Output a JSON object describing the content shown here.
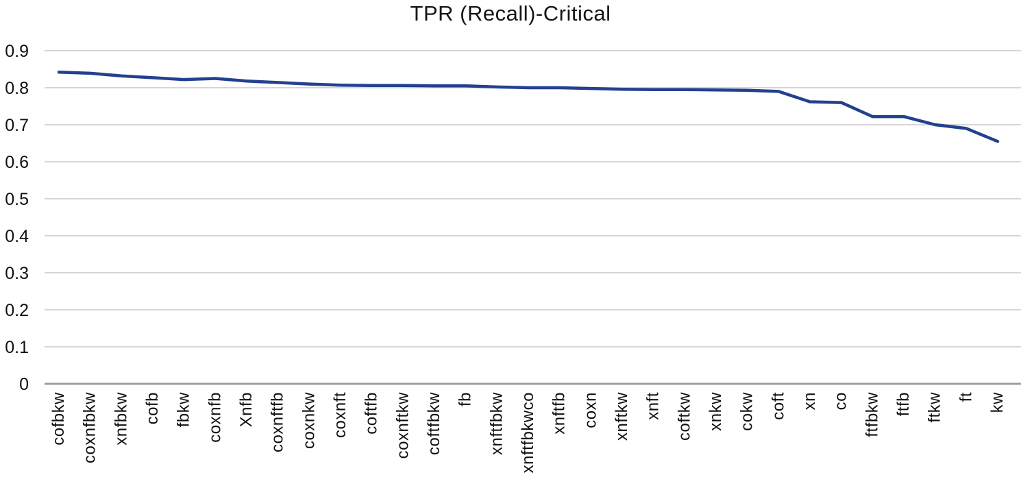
{
  "page": {
    "background": "#ffffff"
  },
  "chart_data": {
    "type": "line",
    "title": "TPR (Recall)-Critical",
    "xlabel": "",
    "ylabel": "",
    "ylim": [
      0,
      0.9
    ],
    "grid": true,
    "legend": "none",
    "y_ticks": [
      "0.9",
      "0.8",
      "0.7",
      "0.6",
      "0.5",
      "0.4",
      "0.3",
      "0.2",
      "0.1",
      "0"
    ],
    "categories": [
      "cofbkw",
      "coxnfbkw",
      "xnfbkw",
      "cofb",
      "fbkw",
      "coxnfb",
      "Xnfb",
      "coxnftfb",
      "coxnkw",
      "coxnft",
      "coftfb",
      "coxnftkw",
      "coftfbkw",
      "fb",
      "xnftfbkw",
      "xnftfbkwco",
      "xnftfb",
      "coxn",
      "xnftkw",
      "xnft",
      "coftkw",
      "xnkw",
      "cokw",
      "coft",
      "xn",
      "co",
      "ftfbkw",
      "ftfb",
      "ftkw",
      "ft",
      "kw"
    ],
    "values": [
      0.842,
      0.839,
      0.832,
      0.827,
      0.822,
      0.825,
      0.818,
      0.814,
      0.81,
      0.807,
      0.806,
      0.806,
      0.805,
      0.805,
      0.802,
      0.8,
      0.8,
      0.798,
      0.796,
      0.795,
      0.795,
      0.794,
      0.793,
      0.79,
      0.762,
      0.76,
      0.722,
      0.722,
      0.7,
      0.69,
      0.655
    ],
    "colors": {
      "line": "#22418f",
      "gridline": "#c8c8c8",
      "axis_line": "#9f9f9f",
      "text": "#111111",
      "title_text": "#161616"
    }
  }
}
